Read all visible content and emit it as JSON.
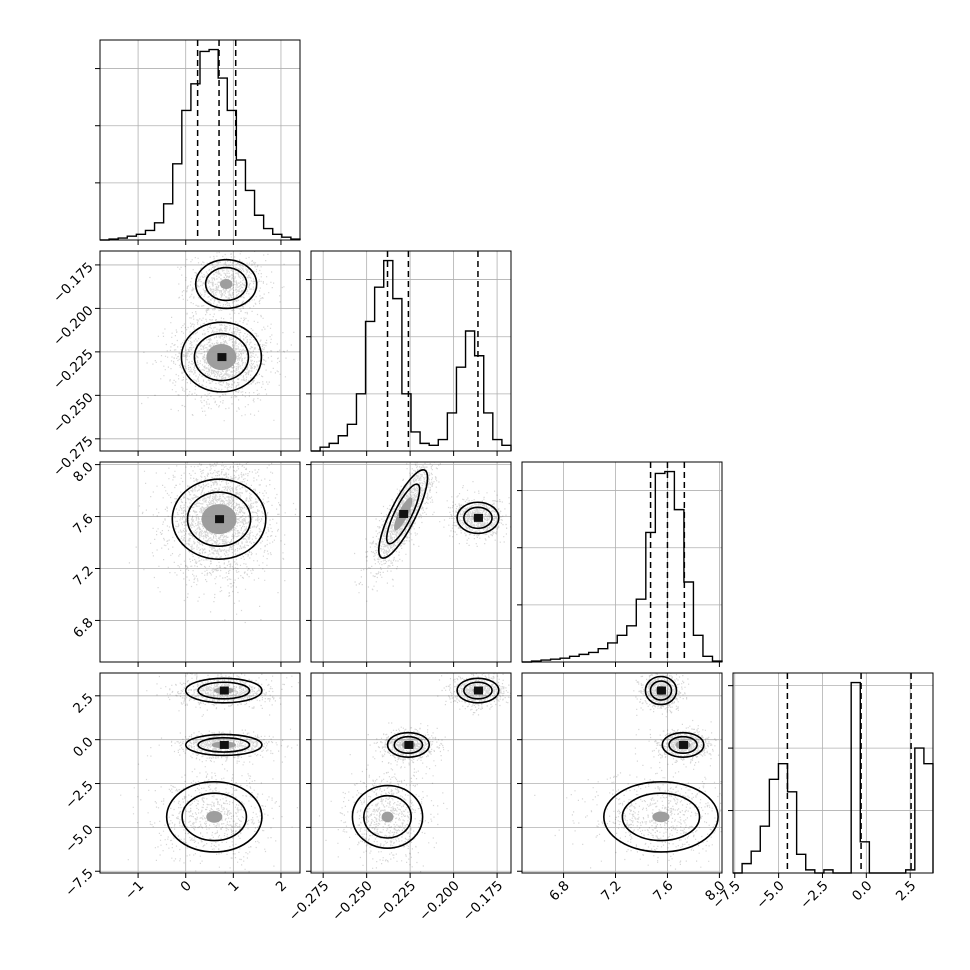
{
  "chart_data": {
    "type": "corner",
    "params": [
      {
        "range": [
          -1.8,
          2.4
        ],
        "ticks": [
          -1,
          0,
          1,
          2
        ],
        "tick_labels": [
          "−1",
          "0",
          "1",
          "2"
        ],
        "quantiles": [
          0.25,
          0.7,
          1.05
        ],
        "hist_y_ticks": [
          0.3,
          0.6,
          0.9
        ],
        "hist": [
          0.0,
          0.005,
          0.01,
          0.02,
          0.03,
          0.05,
          0.09,
          0.19,
          0.4,
          0.68,
          0.82,
          0.99,
          1.0,
          0.85,
          0.68,
          0.42,
          0.26,
          0.13,
          0.06,
          0.03,
          0.015,
          0.005
        ]
      },
      {
        "range": [
          -0.282,
          -0.167
        ],
        "ticks": [
          -0.275,
          -0.25,
          -0.225,
          -0.2,
          -0.175
        ],
        "tick_labels": [
          "−0.275",
          "−0.250",
          "−0.225",
          "−0.200",
          "−0.175"
        ],
        "quantiles": [
          -0.238,
          -0.226,
          -0.186
        ],
        "hist_y_ticks": [
          0.3,
          0.6,
          0.9
        ],
        "hist": [
          0.0,
          0.02,
          0.04,
          0.08,
          0.14,
          0.3,
          0.68,
          0.86,
          1.0,
          0.8,
          0.3,
          0.1,
          0.04,
          0.03,
          0.06,
          0.2,
          0.44,
          0.63,
          0.5,
          0.2,
          0.06,
          0.03
        ]
      },
      {
        "range": [
          6.48,
          8.02
        ],
        "ticks": [
          6.8,
          7.2,
          7.6,
          8.0
        ],
        "tick_labels": [
          "6.8",
          "7.2",
          "7.6",
          "8.0"
        ],
        "quantiles": [
          7.47,
          7.6,
          7.73
        ],
        "hist_y_ticks": [
          0.3,
          0.6,
          0.9
        ],
        "hist": [
          0.0,
          0.005,
          0.01,
          0.015,
          0.02,
          0.03,
          0.04,
          0.05,
          0.07,
          0.1,
          0.14,
          0.19,
          0.33,
          0.68,
          0.99,
          1.0,
          0.8,
          0.42,
          0.14,
          0.03,
          0.005
        ]
      },
      {
        "range": [
          -7.6,
          3.8
        ],
        "ticks": [
          -7.5,
          -5.0,
          -2.5,
          0.0,
          2.5
        ],
        "tick_labels": [
          "−7.5",
          "−5.0",
          "−2.5",
          "0.0",
          "2.5"
        ],
        "quantiles": [
          -4.5,
          -0.3,
          2.55
        ],
        "hist_y_ticks": [
          0.2,
          0.4,
          0.6
        ],
        "hist": [
          0.0,
          0.03,
          0.07,
          0.15,
          0.3,
          0.35,
          0.26,
          0.06,
          0.01,
          0.0,
          0.01,
          0.0,
          0.0,
          0.61,
          0.1,
          0.0,
          0.0,
          0.0,
          0.0,
          0.01,
          0.4,
          0.35
        ]
      }
    ],
    "blobs": {
      "1-0": [
        {
          "mx": 0.85,
          "my": -0.186,
          "sx": 0.32,
          "sy": 0.007,
          "w": 0.35,
          "peak": 0.55
        },
        {
          "mx": 0.75,
          "my": -0.228,
          "sx": 0.42,
          "sy": 0.01,
          "w": 0.65,
          "peak": 1.0
        }
      ],
      "2-0": [
        {
          "mx": 0.7,
          "my": 7.58,
          "sx": 0.42,
          "sy": 0.18,
          "w": 1.0,
          "peak": 1.0
        }
      ],
      "2-1": [
        {
          "mx": -0.229,
          "my": 7.62,
          "sx": 0.007,
          "sy": 0.17,
          "rho": 0.82,
          "w": 0.65,
          "peak": 1.0
        },
        {
          "mx": -0.186,
          "my": 7.59,
          "sx": 0.006,
          "sy": 0.06,
          "w": 0.35,
          "peak": 0.65
        }
      ],
      "3-0": [
        {
          "mx": 0.8,
          "my": 2.8,
          "sx": 0.4,
          "sy": 0.35,
          "w": 0.33,
          "peak": 0.7
        },
        {
          "mx": 0.8,
          "my": -0.3,
          "sx": 0.4,
          "sy": 0.3,
          "w": 0.33,
          "peak": 0.85
        },
        {
          "mx": 0.6,
          "my": -4.4,
          "sx": 0.5,
          "sy": 1.0,
          "w": 0.34,
          "peak": 0.45
        }
      ],
      "3-1": [
        {
          "mx": -0.186,
          "my": 2.8,
          "sx": 0.006,
          "sy": 0.35,
          "w": 0.33,
          "peak": 0.7
        },
        {
          "mx": -0.226,
          "my": -0.3,
          "sx": 0.006,
          "sy": 0.35,
          "w": 0.33,
          "peak": 0.85
        },
        {
          "mx": -0.238,
          "my": -4.4,
          "sx": 0.009,
          "sy": 1.0,
          "w": 0.34,
          "peak": 0.45
        }
      ],
      "3-2": [
        {
          "mx": 7.55,
          "my": 2.8,
          "sx": 0.06,
          "sy": 0.4,
          "w": 0.33,
          "peak": 0.9
        },
        {
          "mx": 7.72,
          "my": -0.3,
          "sx": 0.08,
          "sy": 0.35,
          "w": 0.33,
          "peak": 0.95
        },
        {
          "mx": 7.55,
          "my": -4.4,
          "sx": 0.22,
          "sy": 1.0,
          "w": 0.34,
          "peak": 0.4
        }
      ]
    },
    "grid": true
  }
}
